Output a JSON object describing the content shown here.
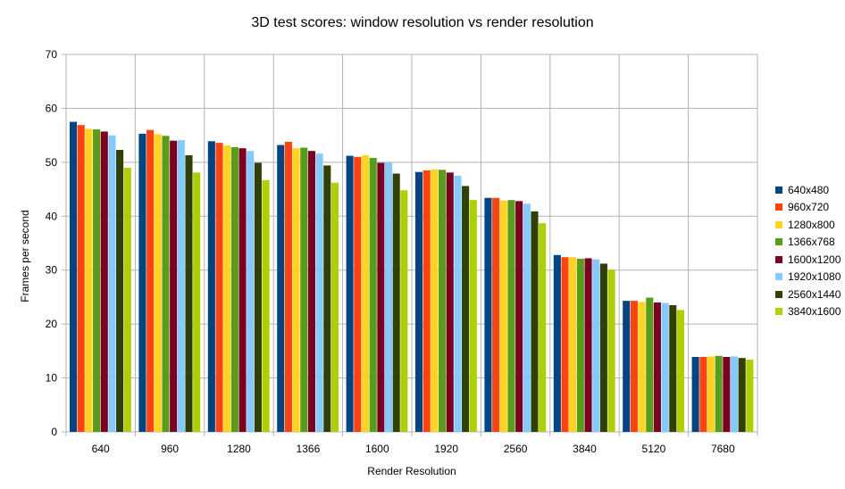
{
  "chart_data": {
    "type": "bar",
    "title": "3D test scores: window resolution vs render resolution",
    "xlabel": "Render Resolution",
    "ylabel": "Frames per second",
    "ylim": [
      0,
      70
    ],
    "yticks": [
      0,
      10,
      20,
      30,
      40,
      50,
      60,
      70
    ],
    "grid": true,
    "legend_position": "right",
    "categories": [
      "640",
      "960",
      "1280",
      "1366",
      "1600",
      "1920",
      "2560",
      "3840",
      "5120",
      "7680"
    ],
    "series": [
      {
        "name": "640x480",
        "color": "#004586",
        "values": [
          57.5,
          55.3,
          53.9,
          53.2,
          51.2,
          48.2,
          43.4,
          32.8,
          24.3,
          13.9
        ]
      },
      {
        "name": "960x720",
        "color": "#ff420e",
        "values": [
          56.9,
          56.0,
          53.6,
          53.8,
          51.0,
          48.5,
          43.4,
          32.4,
          24.3,
          13.9
        ]
      },
      {
        "name": "1280x800",
        "color": "#ffd320",
        "values": [
          56.2,
          55.2,
          53.1,
          52.6,
          51.3,
          48.7,
          42.9,
          32.4,
          24.1,
          14.0
        ]
      },
      {
        "name": "1366x768",
        "color": "#579d1c",
        "values": [
          56.1,
          54.9,
          52.8,
          52.7,
          50.8,
          48.6,
          43.0,
          32.1,
          24.9,
          14.1
        ]
      },
      {
        "name": "1600x1200",
        "color": "#7e0021",
        "values": [
          55.7,
          54.0,
          52.6,
          52.1,
          49.9,
          48.1,
          42.8,
          32.2,
          24.0,
          13.9
        ]
      },
      {
        "name": "1920x1080",
        "color": "#83caff",
        "values": [
          55.0,
          54.1,
          52.1,
          51.6,
          50.0,
          47.5,
          42.3,
          32.0,
          23.9,
          14.0
        ]
      },
      {
        "name": "2560x1440",
        "color": "#314004",
        "values": [
          52.3,
          51.3,
          49.9,
          49.4,
          47.9,
          45.6,
          40.9,
          31.2,
          23.5,
          13.7
        ]
      },
      {
        "name": "3840x1600",
        "color": "#aecf00",
        "values": [
          49.0,
          48.1,
          46.7,
          46.2,
          44.8,
          43.0,
          38.7,
          30.1,
          22.6,
          13.4
        ]
      }
    ]
  }
}
